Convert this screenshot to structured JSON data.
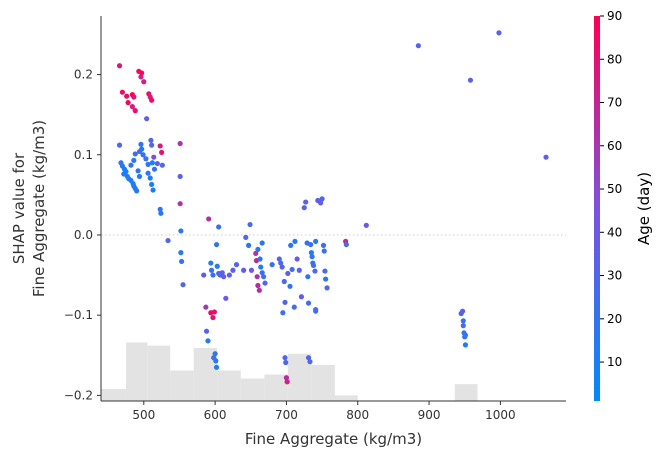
{
  "chart_data": {
    "type": "scatter",
    "title": "",
    "xlabel": "Fine Aggregate (kg/m3)",
    "ylabel_lines": [
      "SHAP value for",
      "Fine Aggregate (kg/m3)"
    ],
    "xlim": [
      440,
      1092
    ],
    "ylim": [
      -0.207,
      0.273
    ],
    "x_ticks": [
      500,
      600,
      700,
      800,
      900,
      1000
    ],
    "x_tick_labels": [
      "500",
      "600",
      "700",
      "800",
      "900",
      "1000"
    ],
    "y_ticks": [
      -0.2,
      -0.1,
      0.0,
      0.1,
      0.2
    ],
    "y_tick_labels": [
      "−0.2",
      "−0.1",
      "0.0",
      "0.1",
      "0.2"
    ],
    "zero_line": true,
    "colorbar": {
      "label": "Age (day)",
      "min": 1,
      "max": 90,
      "ticks": [
        10,
        20,
        30,
        40,
        50,
        60,
        70,
        80,
        90
      ],
      "tick_labels": [
        "10",
        "20",
        "30",
        "40",
        "50",
        "60",
        "70",
        "80",
        "90"
      ],
      "colors": [
        "#008afb",
        "#7c52e0",
        "#ff0051"
      ]
    },
    "histogram": {
      "color": "#e3e3e3",
      "bins": [
        {
          "x0": 440,
          "x1": 475,
          "y": -0.192
        },
        {
          "x0": 475,
          "x1": 505,
          "y": -0.134
        },
        {
          "x0": 505,
          "x1": 537,
          "y": -0.138
        },
        {
          "x0": 537,
          "x1": 570,
          "y": -0.169
        },
        {
          "x0": 570,
          "x1": 603,
          "y": -0.141
        },
        {
          "x0": 603,
          "x1": 636,
          "y": -0.169
        },
        {
          "x0": 636,
          "x1": 669,
          "y": -0.179
        },
        {
          "x0": 669,
          "x1": 702,
          "y": -0.174
        },
        {
          "x0": 702,
          "x1": 735,
          "y": -0.148
        },
        {
          "x0": 735,
          "x1": 768,
          "y": -0.162
        },
        {
          "x0": 768,
          "x1": 800,
          "y": -0.2
        },
        {
          "x0": 936,
          "x1": 968,
          "y": -0.186
        }
      ]
    },
    "points": [
      [
        466,
        0.211,
        78
      ],
      [
        470,
        0.178,
        85
      ],
      [
        476,
        0.173,
        84
      ],
      [
        478,
        0.165,
        88
      ],
      [
        484,
        0.175,
        90
      ],
      [
        484,
        0.16,
        75
      ],
      [
        486,
        0.172,
        80
      ],
      [
        488,
        0.155,
        82
      ],
      [
        493,
        0.204,
        85
      ],
      [
        496,
        0.197,
        70
      ],
      [
        500,
        0.191,
        72
      ],
      [
        497,
        0.202,
        88
      ],
      [
        507,
        0.176,
        80
      ],
      [
        509,
        0.172,
        75
      ],
      [
        511,
        0.168,
        85
      ],
      [
        504,
        0.145,
        35
      ],
      [
        510,
        0.118,
        30
      ],
      [
        511,
        0.112,
        32
      ],
      [
        523,
        0.111,
        75
      ],
      [
        525,
        0.103,
        80
      ],
      [
        519,
        0.089,
        34
      ],
      [
        526,
        0.087,
        30
      ],
      [
        551,
        0.114,
        60
      ],
      [
        466,
        0.112,
        28
      ],
      [
        468,
        0.09,
        18
      ],
      [
        470,
        0.086,
        15
      ],
      [
        473,
        0.082,
        12
      ],
      [
        475,
        0.079,
        10
      ],
      [
        472,
        0.076,
        12
      ],
      [
        477,
        0.073,
        14
      ],
      [
        479,
        0.07,
        10
      ],
      [
        482,
        0.068,
        12
      ],
      [
        485,
        0.064,
        10
      ],
      [
        486,
        0.061,
        12
      ],
      [
        488,
        0.058,
        10
      ],
      [
        490,
        0.055,
        14
      ],
      [
        482,
        0.087,
        18
      ],
      [
        486,
        0.093,
        20
      ],
      [
        488,
        0.101,
        25
      ],
      [
        494,
        0.104,
        28
      ],
      [
        492,
        0.08,
        16
      ],
      [
        494,
        0.073,
        12
      ],
      [
        496,
        0.113,
        18
      ],
      [
        497,
        0.107,
        14
      ],
      [
        499,
        0.1,
        20
      ],
      [
        503,
        0.095,
        22
      ],
      [
        506,
        0.088,
        16
      ],
      [
        506,
        0.077,
        18
      ],
      [
        509,
        0.071,
        12
      ],
      [
        511,
        0.063,
        10
      ],
      [
        513,
        0.056,
        12
      ],
      [
        512,
        0.09,
        14
      ],
      [
        515,
        0.082,
        18
      ],
      [
        514,
        0.097,
        48
      ],
      [
        523,
        0.032,
        18
      ],
      [
        524,
        0.027,
        14
      ],
      [
        534,
        -0.007,
        30
      ],
      [
        551,
        0.039,
        62
      ],
      [
        551,
        0.073,
        32
      ],
      [
        552,
        0.005,
        18
      ],
      [
        552,
        -0.022,
        14
      ],
      [
        553,
        -0.033,
        16
      ],
      [
        555,
        -0.062,
        28
      ],
      [
        584,
        -0.05,
        35
      ],
      [
        587,
        -0.09,
        60
      ],
      [
        588,
        -0.12,
        30
      ],
      [
        590,
        -0.132,
        14
      ],
      [
        591,
        0.02,
        65
      ],
      [
        594,
        -0.035,
        15
      ],
      [
        595,
        -0.044,
        22
      ],
      [
        597,
        -0.05,
        20
      ],
      [
        594,
        -0.097,
        85
      ],
      [
        597,
        -0.103,
        80
      ],
      [
        599,
        -0.096,
        82
      ],
      [
        600,
        -0.148,
        18
      ],
      [
        601,
        -0.157,
        14
      ],
      [
        602,
        -0.165,
        10
      ],
      [
        598,
        -0.153,
        22
      ],
      [
        602,
        -0.012,
        18
      ],
      [
        603,
        -0.039,
        15
      ],
      [
        605,
        -0.048,
        28
      ],
      [
        605,
        0.01,
        20
      ],
      [
        607,
        -0.05,
        30
      ],
      [
        610,
        -0.047,
        35
      ],
      [
        612,
        -0.052,
        40
      ],
      [
        615,
        -0.079,
        40
      ],
      [
        620,
        -0.05,
        30
      ],
      [
        625,
        -0.044,
        35
      ],
      [
        630,
        -0.037,
        30
      ],
      [
        640,
        -0.044,
        35
      ],
      [
        643,
        -0.003,
        30
      ],
      [
        647,
        -0.013,
        18
      ],
      [
        649,
        0.013,
        28
      ],
      [
        651,
        -0.044,
        40
      ],
      [
        657,
        -0.023,
        60
      ],
      [
        658,
        -0.032,
        70
      ],
      [
        659,
        -0.052,
        62
      ],
      [
        660,
        -0.063,
        68
      ],
      [
        662,
        -0.069,
        65
      ],
      [
        663,
        -0.03,
        16
      ],
      [
        660,
        -0.018,
        18
      ],
      [
        664,
        -0.04,
        15
      ],
      [
        666,
        -0.047,
        20
      ],
      [
        666,
        -0.01,
        16
      ],
      [
        668,
        -0.052,
        24
      ],
      [
        670,
        -0.06,
        30
      ],
      [
        680,
        -0.037,
        20
      ],
      [
        690,
        -0.03,
        28
      ],
      [
        692,
        -0.035,
        30
      ],
      [
        694,
        -0.04,
        32
      ],
      [
        695,
        -0.097,
        22
      ],
      [
        697,
        -0.058,
        28
      ],
      [
        698,
        -0.084,
        32
      ],
      [
        698,
        -0.153,
        30
      ],
      [
        699,
        -0.159,
        30
      ],
      [
        700,
        -0.178,
        68
      ],
      [
        701,
        -0.183,
        72
      ],
      [
        702,
        -0.048,
        35
      ],
      [
        705,
        -0.064,
        18
      ],
      [
        706,
        -0.013,
        16
      ],
      [
        708,
        -0.043,
        24
      ],
      [
        711,
        -0.09,
        26
      ],
      [
        712,
        -0.008,
        14
      ],
      [
        715,
        -0.03,
        38
      ],
      [
        718,
        -0.044,
        34
      ],
      [
        721,
        -0.077,
        38
      ],
      [
        725,
        0.034,
        30
      ],
      [
        727,
        0.041,
        34
      ],
      [
        729,
        -0.01,
        20
      ],
      [
        730,
        -0.052,
        18
      ],
      [
        731,
        -0.085,
        26
      ],
      [
        731,
        -0.153,
        30
      ],
      [
        733,
        -0.158,
        30
      ],
      [
        734,
        -0.012,
        22
      ],
      [
        735,
        -0.022,
        18
      ],
      [
        736,
        -0.027,
        15
      ],
      [
        737,
        -0.035,
        20
      ],
      [
        738,
        -0.038,
        24
      ],
      [
        740,
        -0.045,
        30
      ],
      [
        741,
        -0.008,
        14
      ],
      [
        741,
        -0.095,
        22
      ],
      [
        741,
        -0.093,
        26
      ],
      [
        744,
        0.043,
        34
      ],
      [
        748,
        0.04,
        38
      ],
      [
        750,
        0.045,
        32
      ],
      [
        752,
        -0.013,
        20
      ],
      [
        753,
        -0.02,
        22
      ],
      [
        754,
        -0.045,
        26
      ],
      [
        755,
        -0.055,
        18
      ],
      [
        757,
        -0.066,
        30
      ],
      [
        783,
        -0.008,
        68
      ],
      [
        784,
        -0.012,
        28
      ],
      [
        812,
        0.012,
        38
      ],
      [
        885,
        0.236,
        32
      ],
      [
        945,
        -0.098,
        30
      ],
      [
        947,
        -0.095,
        32
      ],
      [
        948,
        -0.113,
        26
      ],
      [
        948,
        -0.107,
        22
      ],
      [
        949,
        -0.122,
        18
      ],
      [
        950,
        -0.127,
        16
      ],
      [
        951,
        -0.125,
        20
      ],
      [
        951,
        -0.137,
        14
      ],
      [
        958,
        0.193,
        32
      ],
      [
        998,
        0.252,
        32
      ],
      [
        1064,
        0.097,
        34
      ]
    ]
  }
}
